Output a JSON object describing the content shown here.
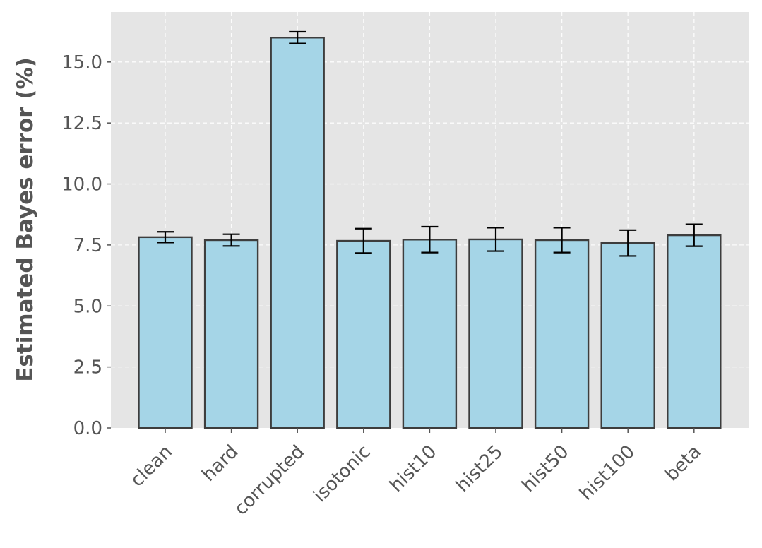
{
  "chart_data": {
    "type": "bar",
    "title": "",
    "xlabel": "",
    "ylabel": "Estimated Bayes error (%)",
    "ylim": [
      0,
      17.05
    ],
    "yticks": [
      0.0,
      2.5,
      5.0,
      7.5,
      10.0,
      12.5,
      15.0
    ],
    "ytick_labels": [
      "0.0",
      "2.5",
      "5.0",
      "7.5",
      "10.0",
      "12.5",
      "15.0"
    ],
    "grid": true,
    "categories": [
      "clean",
      "hard",
      "corrupted",
      "isotonic",
      "hist10",
      "hist25",
      "hist50",
      "hist100",
      "beta"
    ],
    "series": [
      {
        "values": [
          7.82,
          7.7,
          16.0,
          7.67,
          7.72,
          7.73,
          7.7,
          7.58,
          7.9
        ],
        "error": [
          0.22,
          0.24,
          0.24,
          0.5,
          0.53,
          0.48,
          0.51,
          0.53,
          0.45
        ]
      }
    ],
    "colors": {
      "bar_fill": "#a5d5e7",
      "bar_edge": "#3d3d3d",
      "plot_bg": "#e5e5e5",
      "grid": "#ffffff",
      "text": "#555555",
      "errorbar": "#000000"
    }
  }
}
